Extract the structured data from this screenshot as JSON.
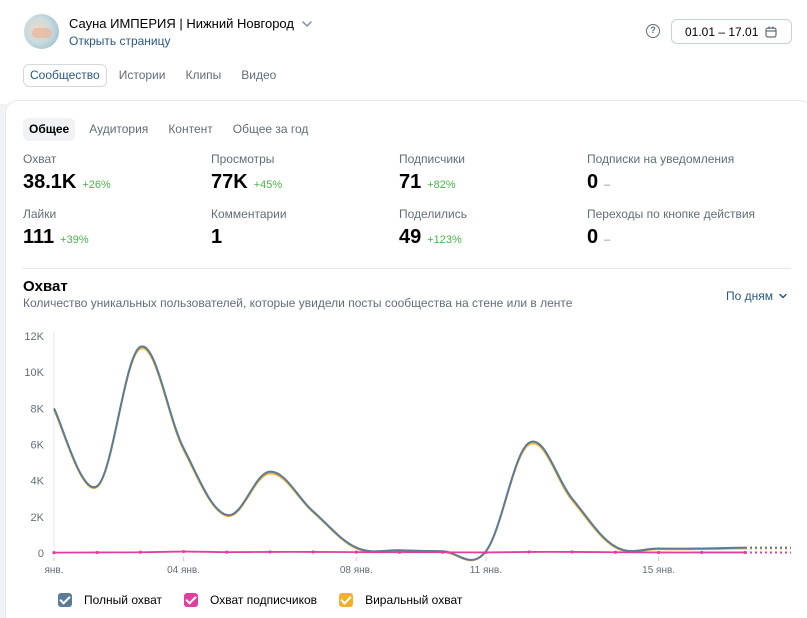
{
  "header": {
    "group_name": "Сауна ИМПЕРИЯ | Нижний Новгород",
    "open_link": "Открыть страницу",
    "date_range": "01.01 – 17.01",
    "help_glyph": "?"
  },
  "main_tabs": [
    "Сообщество",
    "Истории",
    "Клипы",
    "Видео"
  ],
  "sub_tabs": [
    "Общее",
    "Аудитория",
    "Контент",
    "Общее за год"
  ],
  "metrics": [
    {
      "label": "Охват",
      "value": "38.1K",
      "change": "+26%"
    },
    {
      "label": "Просмотры",
      "value": "77K",
      "change": "+45%"
    },
    {
      "label": "Подписчики",
      "value": "71",
      "change": "+82%"
    },
    {
      "label": "Подписки на уведомления",
      "value": "0",
      "change": "–"
    },
    {
      "label": "Лайки",
      "value": "111",
      "change": "+39%"
    },
    {
      "label": "Комментарии",
      "value": "1",
      "change": ""
    },
    {
      "label": "Поделились",
      "value": "49",
      "change": "+123%"
    },
    {
      "label": "Переходы по кнопке действия",
      "value": "0",
      "change": "–"
    }
  ],
  "chart": {
    "title": "Охват",
    "subtitle": "Количество уникальных пользователей, которые увидели посты сообщества на стене или в ленте",
    "period": "По дням"
  },
  "colors": {
    "total": "#5b7b99",
    "subscribers": "#e03fa0",
    "viral": "#f0b02e"
  },
  "chart_data": {
    "type": "line",
    "x": [
      "01 янв.",
      "02 янв.",
      "03 янв.",
      "04 янв.",
      "05 янв.",
      "06 янв.",
      "07 янв.",
      "08 янв.",
      "09 янв.",
      "10 янв.",
      "11 янв.",
      "12 янв.",
      "13 янв.",
      "14 янв.",
      "15 янв.",
      "16 янв.",
      "17 янв."
    ],
    "x_tick_labels": [
      "янв.",
      "04 янв.",
      "08 янв.",
      "11 янв.",
      "15 янв."
    ],
    "x_tick_indices": [
      0,
      3,
      7,
      10,
      14
    ],
    "y_ticks": [
      0,
      2000,
      4000,
      6000,
      8000,
      10000,
      12000
    ],
    "y_tick_labels": [
      "0",
      "2K",
      "4K",
      "6K",
      "8K",
      "10K",
      "12K"
    ],
    "ylim": [
      0,
      12000
    ],
    "series": [
      {
        "name": "Полный охват",
        "color_key": "total",
        "values": [
          8000,
          3700,
          11400,
          5800,
          2100,
          4500,
          2300,
          300,
          150,
          100,
          100,
          6100,
          3000,
          350,
          250,
          250,
          300
        ]
      },
      {
        "name": "Охват подписчиков",
        "color_key": "subscribers",
        "values": [
          20,
          30,
          40,
          80,
          50,
          60,
          60,
          50,
          40,
          40,
          30,
          60,
          60,
          40,
          30,
          30,
          30
        ]
      },
      {
        "name": "Виральный охват",
        "color_key": "viral",
        "values": [
          7900,
          3650,
          11300,
          5700,
          2050,
          4400,
          2250,
          250,
          110,
          60,
          70,
          6000,
          2900,
          300,
          210,
          210,
          250
        ]
      }
    ]
  },
  "legend": [
    "Полный охват",
    "Охват подписчиков",
    "Виральный охват"
  ]
}
